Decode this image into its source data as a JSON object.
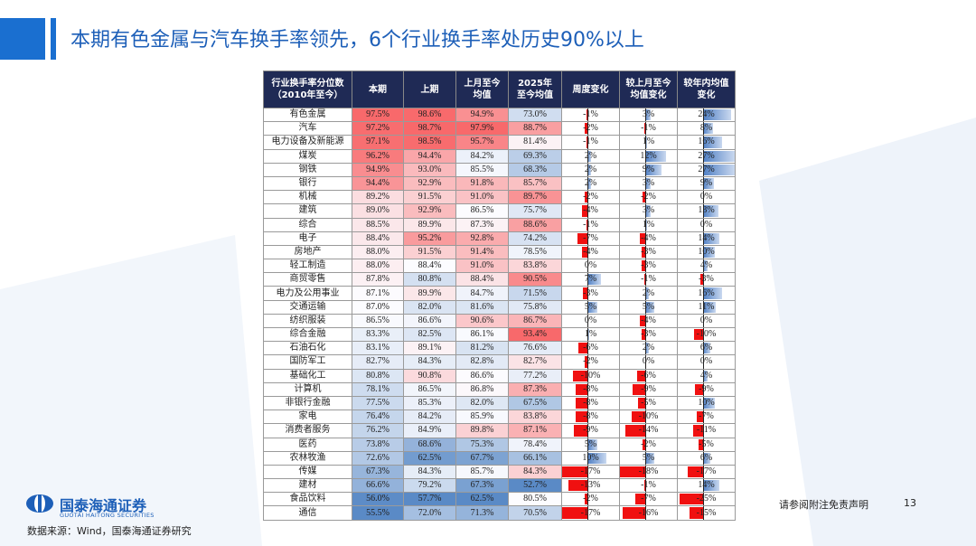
{
  "header": {
    "title": "本期有色金属与汽车换手率领先，6个行业换手率处历史90%以上"
  },
  "table": {
    "columns": [
      [
        "行业换手率分位数",
        "（2010年至今）"
      ],
      [
        "本期"
      ],
      [
        "上期"
      ],
      [
        "上月至今",
        "均值"
      ],
      [
        "2025年",
        "至今均值"
      ],
      [
        "周度变化"
      ],
      [
        "较上月至今",
        "均值变化"
      ],
      [
        "较年内均值",
        "变化"
      ]
    ],
    "rows": [
      [
        "有色金属",
        "97.5%",
        "98.6%",
        "94.9%",
        "73.0%",
        {
          "value": -1,
          "label": "-1%"
        },
        {
          "value": 3,
          "label": "3%"
        },
        {
          "value": 24,
          "label": "24%"
        }
      ],
      [
        "汽车",
        "97.2%",
        "98.7%",
        "97.9%",
        "88.7%",
        {
          "value": -2,
          "label": "-2%"
        },
        {
          "value": -1,
          "label": "-1%"
        },
        {
          "value": 8,
          "label": "8%"
        }
      ],
      [
        "电力设备及新能源",
        "97.1%",
        "98.5%",
        "95.7%",
        "81.4%",
        {
          "value": -1,
          "label": "-1%"
        },
        {
          "value": 1,
          "label": "1%"
        },
        {
          "value": 16,
          "label": "16%"
        }
      ],
      [
        "煤炭",
        "96.2%",
        "94.4%",
        "84.2%",
        "69.3%",
        {
          "value": 2,
          "label": "2%"
        },
        {
          "value": 12,
          "label": "12%"
        },
        {
          "value": 27,
          "label": "27%"
        }
      ],
      [
        "钢铁",
        "94.9%",
        "93.0%",
        "85.5%",
        "68.3%",
        {
          "value": 2,
          "label": "2%"
        },
        {
          "value": 9,
          "label": "9%"
        },
        {
          "value": 27,
          "label": "27%"
        }
      ],
      [
        "银行",
        "94.4%",
        "92.9%",
        "91.8%",
        "85.7%",
        {
          "value": 2,
          "label": "2%"
        },
        {
          "value": 3,
          "label": "3%"
        },
        {
          "value": 9,
          "label": "9%"
        }
      ],
      [
        "机械",
        "89.2%",
        "91.5%",
        "91.0%",
        "89.7%",
        {
          "value": -2,
          "label": "-2%"
        },
        {
          "value": -2,
          "label": "-2%"
        },
        {
          "value": 0,
          "label": "0%"
        }
      ],
      [
        "建筑",
        "89.0%",
        "92.9%",
        "86.5%",
        "75.7%",
        {
          "value": -4,
          "label": "-4%"
        },
        {
          "value": 3,
          "label": "3%"
        },
        {
          "value": 13,
          "label": "13%"
        }
      ],
      [
        "综合",
        "88.5%",
        "89.9%",
        "87.3%",
        "88.6%",
        {
          "value": -1,
          "label": "-1%"
        },
        {
          "value": 1,
          "label": "1%"
        },
        {
          "value": 0,
          "label": "0%"
        }
      ],
      [
        "电子",
        "88.4%",
        "95.2%",
        "92.8%",
        "74.2%",
        {
          "value": -7,
          "label": "-7%"
        },
        {
          "value": -4,
          "label": "-4%"
        },
        {
          "value": 14,
          "label": "14%"
        }
      ],
      [
        "房地产",
        "88.0%",
        "91.5%",
        "91.4%",
        "78.5%",
        {
          "value": -4,
          "label": "-4%"
        },
        {
          "value": -3,
          "label": "-3%"
        },
        {
          "value": 10,
          "label": "10%"
        }
      ],
      [
        "轻工制造",
        "88.0%",
        "88.4%",
        "91.0%",
        "83.8%",
        {
          "value": 0,
          "label": "0%"
        },
        {
          "value": -3,
          "label": "-3%"
        },
        {
          "value": 4,
          "label": "4%"
        }
      ],
      [
        "商贸零售",
        "87.8%",
        "80.8%",
        "88.4%",
        "90.5%",
        {
          "value": 7,
          "label": "7%"
        },
        {
          "value": -1,
          "label": "-1%"
        },
        {
          "value": -3,
          "label": "-3%"
        }
      ],
      [
        "电力及公用事业",
        "87.1%",
        "89.9%",
        "84.7%",
        "71.5%",
        {
          "value": -3,
          "label": "-3%"
        },
        {
          "value": 2,
          "label": "2%"
        },
        {
          "value": 16,
          "label": "16%"
        }
      ],
      [
        "交通运输",
        "87.0%",
        "82.0%",
        "81.6%",
        "75.8%",
        {
          "value": 5,
          "label": "5%"
        },
        {
          "value": 5,
          "label": "5%"
        },
        {
          "value": 11,
          "label": "11%"
        }
      ],
      [
        "纺织服装",
        "86.5%",
        "86.6%",
        "90.6%",
        "86.7%",
        {
          "value": 0,
          "label": "0%"
        },
        {
          "value": -4,
          "label": "-4%"
        },
        {
          "value": 0,
          "label": "0%"
        }
      ],
      [
        "综合金融",
        "83.3%",
        "82.5%",
        "86.1%",
        "93.4%",
        {
          "value": 1,
          "label": "1%"
        },
        {
          "value": -3,
          "label": "-3%"
        },
        {
          "value": -10,
          "label": "-10%"
        }
      ],
      [
        "石油石化",
        "83.1%",
        "89.1%",
        "81.2%",
        "76.6%",
        {
          "value": -6,
          "label": "-6%"
        },
        {
          "value": 2,
          "label": "2%"
        },
        {
          "value": 6,
          "label": "6%"
        }
      ],
      [
        "国防军工",
        "82.7%",
        "84.3%",
        "82.8%",
        "82.7%",
        {
          "value": -2,
          "label": "-2%"
        },
        {
          "value": 0,
          "label": "0%"
        },
        {
          "value": 0,
          "label": "0%"
        }
      ],
      [
        "基础化工",
        "80.8%",
        "90.8%",
        "86.6%",
        "77.2%",
        {
          "value": -10,
          "label": "-10%"
        },
        {
          "value": -6,
          "label": "-6%"
        },
        {
          "value": 4,
          "label": "4%"
        }
      ],
      [
        "计算机",
        "78.1%",
        "86.5%",
        "86.8%",
        "87.3%",
        {
          "value": -8,
          "label": "-8%"
        },
        {
          "value": -9,
          "label": "-9%"
        },
        {
          "value": -9,
          "label": "-9%"
        }
      ],
      [
        "非银行金融",
        "77.5%",
        "85.3%",
        "82.0%",
        "67.5%",
        {
          "value": -8,
          "label": "-8%"
        },
        {
          "value": -5,
          "label": "-5%"
        },
        {
          "value": 10,
          "label": "10%"
        }
      ],
      [
        "家电",
        "76.4%",
        "84.2%",
        "85.9%",
        "83.8%",
        {
          "value": -8,
          "label": "-8%"
        },
        {
          "value": -10,
          "label": "-10%"
        },
        {
          "value": -7,
          "label": "-7%"
        }
      ],
      [
        "消费者服务",
        "76.2%",
        "84.9%",
        "89.8%",
        "87.1%",
        {
          "value": -9,
          "label": "-9%"
        },
        {
          "value": -14,
          "label": "-14%"
        },
        {
          "value": -11,
          "label": "-11%"
        }
      ],
      [
        "医药",
        "73.8%",
        "68.6%",
        "75.3%",
        "78.4%",
        {
          "value": 5,
          "label": "5%"
        },
        {
          "value": -2,
          "label": "-2%"
        },
        {
          "value": -5,
          "label": "-5%"
        }
      ],
      [
        "农林牧渔",
        "72.6%",
        "62.5%",
        "67.7%",
        "66.1%",
        {
          "value": 10,
          "label": "10%"
        },
        {
          "value": 5,
          "label": "5%"
        },
        {
          "value": 6,
          "label": "6%"
        }
      ],
      [
        "传媒",
        "67.3%",
        "84.3%",
        "85.7%",
        "84.3%",
        {
          "value": -17,
          "label": "-17%"
        },
        {
          "value": -18,
          "label": "-18%"
        },
        {
          "value": -17,
          "label": "-17%"
        }
      ],
      [
        "建材",
        "66.6%",
        "79.2%",
        "67.3%",
        "52.7%",
        {
          "value": -13,
          "label": "-13%"
        },
        {
          "value": -1,
          "label": "-1%"
        },
        {
          "value": 14,
          "label": "14%"
        }
      ],
      [
        "食品饮料",
        "56.0%",
        "57.7%",
        "62.5%",
        "80.5%",
        {
          "value": -2,
          "label": "-2%"
        },
        {
          "value": -7,
          "label": "-7%"
        },
        {
          "value": -25,
          "label": "-25%"
        }
      ],
      [
        "通信",
        "55.5%",
        "72.0%",
        "71.3%",
        "70.5%",
        {
          "value": -17,
          "label": "-17%"
        },
        {
          "value": -16,
          "label": "-16%"
        },
        {
          "value": -15,
          "label": "-15%"
        }
      ]
    ]
  },
  "footer": {
    "brand": "国泰海通证券",
    "brand_en": "GUOTAI HAITONG SECURITIES",
    "source": "数据来源：Wind，国泰海通证券研究",
    "disclaimer": "请参阅附注免责声明",
    "page": "13"
  }
}
